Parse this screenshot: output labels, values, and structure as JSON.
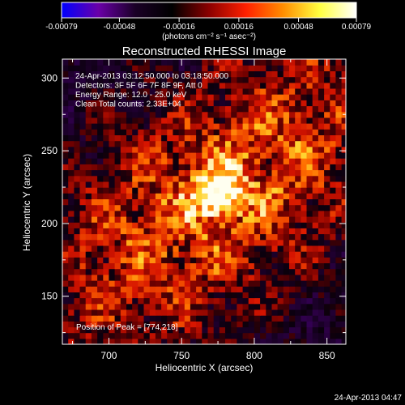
{
  "chart_data": {
    "type": "heatmap",
    "title": "Reconstructed RHESSI Image",
    "colorbar": {
      "ticks": [
        "-0.00079",
        "-0.00048",
        "-0.00016",
        "0.00016",
        "0.00048",
        "0.00079"
      ],
      "tick_values": [
        -0.00079,
        -0.00048,
        -0.00016,
        0.00016,
        0.00048,
        0.00079
      ],
      "range": [
        -0.00079,
        0.00079
      ],
      "label": "(photons cm⁻² s⁻¹ asec⁻²)",
      "colormap": [
        "#0000ff",
        "#6a00a8",
        "#1a0026",
        "#000000",
        "#8b0000",
        "#ff2000",
        "#ff8c00",
        "#ffff40",
        "#ffffff"
      ]
    },
    "xlabel": "Heliocentric X (arcsec)",
    "ylabel": "Heliocentric Y (arcsec)",
    "xlim": [
      668,
      863
    ],
    "ylim": [
      117,
      313
    ],
    "xticks": [
      700,
      750,
      800,
      850
    ],
    "yticks": [
      150,
      200,
      250,
      300
    ],
    "info_lines": [
      "24-Apr-2013 03:12:50.000 to 03:18:50.000",
      "Detectors: 3F 5F 6F 7F 8F 9F, Att 0",
      "Energy Range: 12.0 - 25.0 keV",
      "Clean     Total counts: 2.33E+04"
    ],
    "peak_label": "Position of Peak = [774,218]",
    "peak": [
      774,
      218
    ],
    "grid": false
  },
  "footer": {
    "timestamp": "24-Apr-2013 04:47"
  }
}
